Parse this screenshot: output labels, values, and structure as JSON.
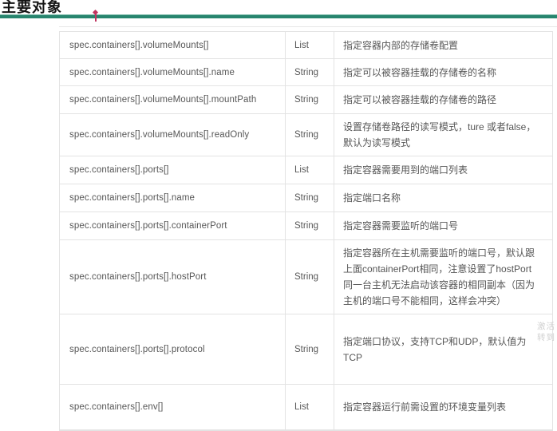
{
  "page": {
    "title": "主要对象"
  },
  "table": {
    "rows": [
      {
        "field": "spec.containers[].volumeMounts[]",
        "type": "List",
        "desc": "指定容器内部的存储卷配置"
      },
      {
        "field": "spec.containers[].volumeMounts[].name",
        "type": "String",
        "desc": "指定可以被容器挂载的存储卷的名称"
      },
      {
        "field": "spec.containers[].volumeMounts[].mountPath",
        "type": "String",
        "desc": "指定可以被容器挂载的存储卷的路径"
      },
      {
        "field": "spec.containers[].volumeMounts[].readOnly",
        "type": "String",
        "desc": "设置存储卷路径的读写模式，ture 或者false，默认为读写模式"
      },
      {
        "field": "spec.containers[].ports[]",
        "type": "List",
        "desc": "指定容器需要用到的端口列表"
      },
      {
        "field": "spec.containers[].ports[].name",
        "type": "String",
        "desc": "指定端口名称"
      },
      {
        "field": "spec.containers[].ports[].containerPort",
        "type": "String",
        "desc": "指定容器需要监听的端口号"
      },
      {
        "field": "spec.containers[].ports[].hostPort",
        "type": "String",
        "desc": "指定容器所在主机需要监听的端口号，默认跟上面containerPort相同，注意设置了hostPort同一台主机无法启动该容器的相同副本（因为主机的端口号不能相同，这样会冲突）"
      },
      {
        "field": "spec.containers[].ports[].protocol",
        "type": "String",
        "desc": "指定端口协议，支持TCP和UDP，默认值为TCP"
      },
      {
        "field": "spec.containers[].env[]",
        "type": "List",
        "desc": "指定容器运行前需设置的环境变量列表"
      }
    ]
  },
  "watermark": {
    "line1": "激活",
    "line2": "转到"
  },
  "colors": {
    "accent_line": "#27856e",
    "marker": "#c03560",
    "border": "#e3e3e3",
    "text": "#575757"
  }
}
